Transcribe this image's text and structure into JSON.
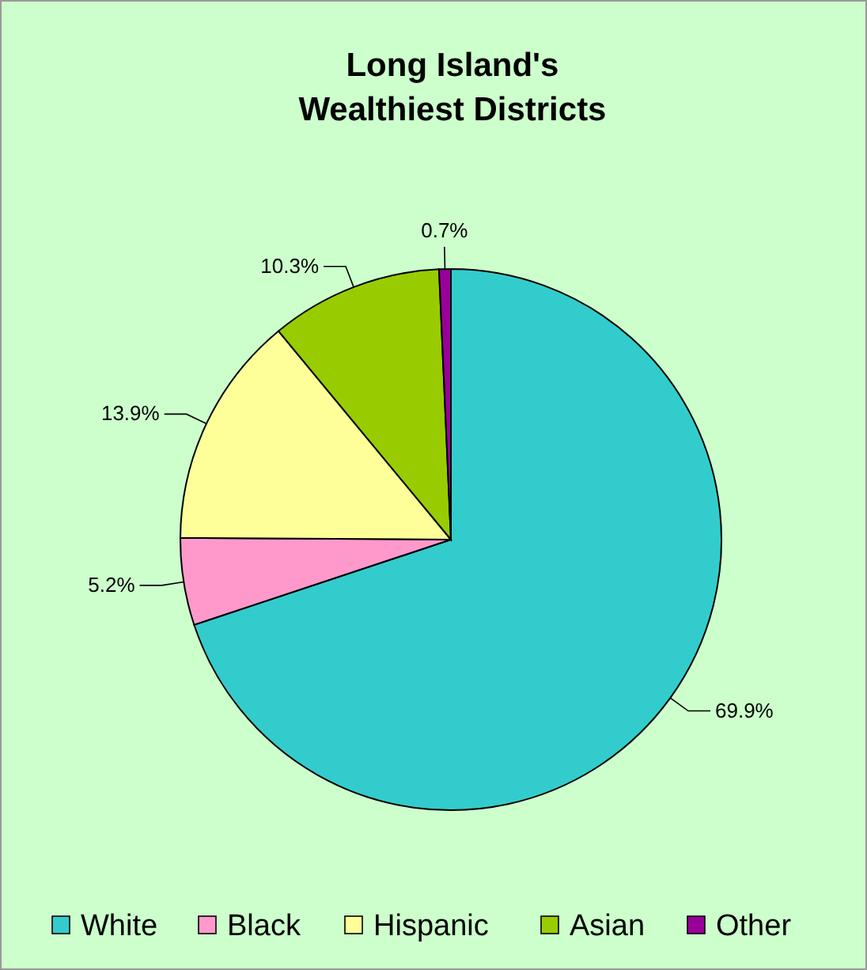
{
  "chart_data": {
    "type": "pie",
    "title": "Long Island's\nWealthiest Districts",
    "categories": [
      "White",
      "Black",
      "Hispanic",
      "Asian",
      "Other"
    ],
    "values": [
      69.9,
      5.2,
      13.9,
      10.3,
      0.7
    ],
    "colors": [
      "#33cccc",
      "#ff99cc",
      "#ffff99",
      "#99cc00",
      "#990099"
    ],
    "value_labels": [
      "69.9%",
      "5.2%",
      "13.9%",
      "10.3%",
      "0.7%"
    ],
    "legend": "bottom"
  }
}
